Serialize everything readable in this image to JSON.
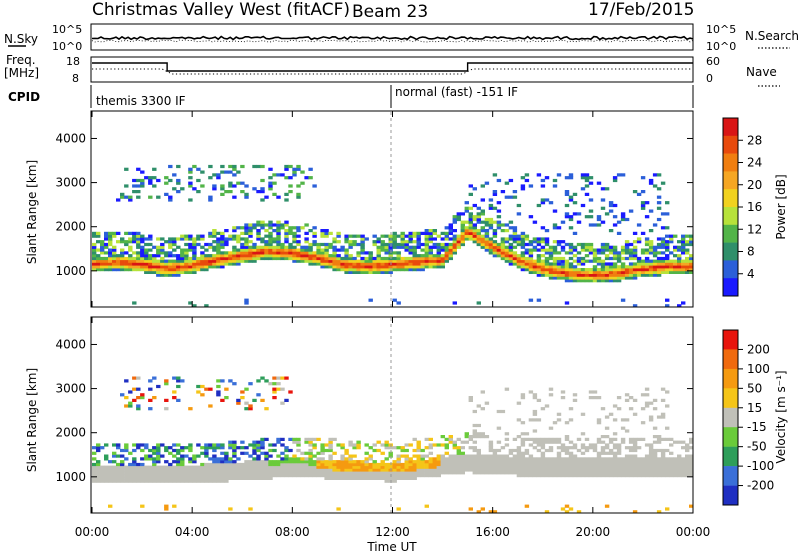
{
  "header": {
    "title": "Christmas Valley West (fitACF)",
    "beam": "Beam 23",
    "date": "17/Feb/2015"
  },
  "noise_panel": {
    "left_label": "N.Sky",
    "right_label": "N.Search",
    "left_ticks": [
      "10^5",
      "10^0"
    ],
    "right_ticks": [
      "10^5",
      "10^0"
    ]
  },
  "freq_panel": {
    "left_label": "Freq.",
    "left_unit": "[MHz]",
    "right_label": "Nave",
    "left_ticks": [
      "18",
      "8"
    ],
    "right_ticks": [
      "60",
      "0"
    ]
  },
  "cpid": {
    "label": "CPID",
    "programs": [
      {
        "name": "themis 3300 IF",
        "start_hour": 0
      },
      {
        "name": "normal (fast) -151 IF",
        "start_hour": 12
      }
    ]
  },
  "x_axis": {
    "label": "Time UT",
    "ticks": [
      "00:00",
      "04:00",
      "08:00",
      "12:00",
      "16:00",
      "20:00",
      "00:00"
    ]
  },
  "chart_data": [
    {
      "type": "heatmap",
      "title": "",
      "xlabel": "Time UT",
      "ylabel": "Slant Range [km]",
      "xlim": [
        0,
        24
      ],
      "ylim": [
        180,
        4600
      ],
      "yticks": [
        "1000",
        "2000",
        "3000",
        "4000"
      ],
      "colorbar": {
        "label": "Power [dB]",
        "ticks": [
          "4",
          "8",
          "12",
          "16",
          "20",
          "24",
          "28"
        ],
        "range": [
          0,
          30
        ],
        "colors": [
          "#1a1aff",
          "#2b5fd9",
          "#2f8f6a",
          "#52b448",
          "#b7e23a",
          "#f1d21f",
          "#f5a623",
          "#f07e10",
          "#e84a0c",
          "#d91515"
        ]
      },
      "main_band": [
        {
          "t": 0,
          "r": 1150
        },
        {
          "t": 1,
          "r": 1200
        },
        {
          "t": 2,
          "r": 1150
        },
        {
          "t": 3,
          "r": 1050
        },
        {
          "t": 4,
          "r": 1120
        },
        {
          "t": 5,
          "r": 1250
        },
        {
          "t": 6,
          "r": 1350
        },
        {
          "t": 7,
          "r": 1450
        },
        {
          "t": 8,
          "r": 1400
        },
        {
          "t": 9,
          "r": 1300
        },
        {
          "t": 10,
          "r": 1150
        },
        {
          "t": 11,
          "r": 1100
        },
        {
          "t": 12,
          "r": 1150
        },
        {
          "t": 13,
          "r": 1200
        },
        {
          "t": 14,
          "r": 1250
        },
        {
          "t": 15,
          "r": 1900
        },
        {
          "t": 16,
          "r": 1550
        },
        {
          "t": 17,
          "r": 1250
        },
        {
          "t": 18,
          "r": 1050
        },
        {
          "t": 19,
          "r": 950
        },
        {
          "t": 20,
          "r": 900
        },
        {
          "t": 21,
          "r": 950
        },
        {
          "t": 22,
          "r": 1050
        },
        {
          "t": 23,
          "r": 1100
        },
        {
          "t": 24,
          "r": 1100
        }
      ]
    },
    {
      "type": "heatmap",
      "title": "",
      "xlabel": "Time UT",
      "ylabel": "Slant Range [km]",
      "xlim": [
        0,
        24
      ],
      "ylim": [
        180,
        4600
      ],
      "yticks": [
        "1000",
        "2000",
        "3000",
        "4000"
      ],
      "colorbar": {
        "label": "Velocity [m s⁻¹]",
        "ticks": [
          "200",
          "100",
          "50",
          "15",
          "-15",
          "-50",
          "-100",
          "-200"
        ],
        "range": [
          -250,
          250
        ],
        "colors": [
          "#1f2fc2",
          "#3a6fd8",
          "#2e9e5a",
          "#6acb3a",
          "#c0c0b8",
          "#f5c518",
          "#f59a10",
          "#f06a0e",
          "#e8140c"
        ]
      },
      "ground_band": [
        {
          "t": 0,
          "r": 1150
        },
        {
          "t": 4,
          "r": 1150
        },
        {
          "t": 8,
          "r": 1300
        },
        {
          "t": 12,
          "r": 1200
        },
        {
          "t": 15,
          "r": 1400
        },
        {
          "t": 18,
          "r": 1300
        },
        {
          "t": 21,
          "r": 1300
        },
        {
          "t": 24,
          "r": 1300
        }
      ]
    }
  ]
}
